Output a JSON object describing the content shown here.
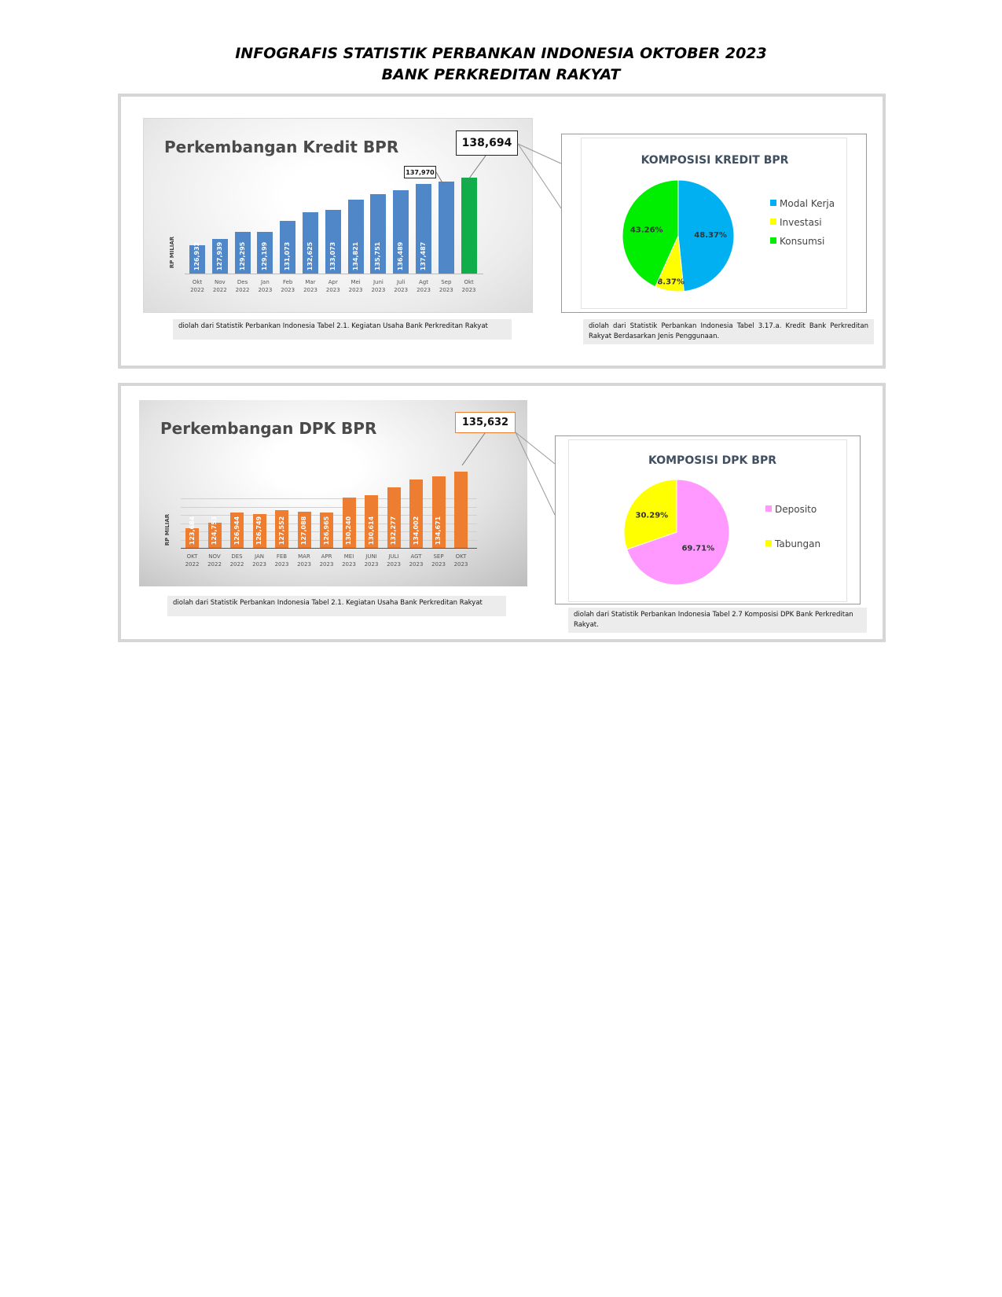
{
  "header": {
    "title_line1": "INFOGRAFIS STATISTIK PERBANKAN INDONESIA OKTOBER 2023",
    "title_line2": "BANK PERKREDITAN RAKYAT"
  },
  "colors": {
    "kredit_bar": "#4f87c8",
    "kredit_bar_highlight": "#0fae4b",
    "dpk_bar": "#ed7d31",
    "modal_kerja": "#00b0f0",
    "investasi": "#ffff00",
    "konsumsi": "#00ee00",
    "deposito": "#ff99ff",
    "tabungan": "#ffff00"
  },
  "kredit_section": {
    "source_note": "diolah dari Statistik Perbankan Indonesia Tabel 2.1. Kegiatan Usaha Bank Perkreditan Rakyat",
    "pie_source_note": "diolah dari Statistik Perbankan Indonesia Tabel 3.17.a. Kredit Bank Perkreditan Rakyat Berdasarkan Jenis Penggunaan."
  },
  "dpk_section": {
    "source_note": "diolah dari Statistik Perbankan Indonesia Tabel 2.1. Kegiatan Usaha Bank Perkreditan Rakyat",
    "pie_source_note": "diolah dari Statistik Perbankan Indonesia Tabel 2.7 Komposisi DPK Bank Perkreditan Rakyat."
  },
  "chart_data": [
    {
      "type": "bar",
      "title": "Perkembangan Kredit BPR",
      "ylabel": "RP MILIAR",
      "categories": [
        [
          "Okt",
          "2022"
        ],
        [
          "Nov",
          "2022"
        ],
        [
          "Des",
          "2022"
        ],
        [
          "Jan",
          "2023"
        ],
        [
          "Feb",
          "2023"
        ],
        [
          "Mar",
          "2023"
        ],
        [
          "Apr",
          "2023"
        ],
        [
          "Mei",
          "2023"
        ],
        [
          "Juni",
          "2023"
        ],
        [
          "Juli",
          "2023"
        ],
        [
          "Agt",
          "2023"
        ],
        [
          "Sep",
          "2023"
        ],
        [
          "Okt",
          "2023"
        ]
      ],
      "values": [
        126932,
        127939,
        129295,
        129199,
        131073,
        132625,
        133073,
        134821,
        135751,
        136489,
        137487,
        137970,
        138694
      ],
      "value_labels": [
        "126,932",
        "127,939",
        "129,295",
        "129,199",
        "131,073",
        "132,625",
        "133,073",
        "134,821",
        "135,751",
        "136,489",
        "137,487",
        "",
        ""
      ],
      "callouts": [
        {
          "index": 12,
          "label": "138,694"
        },
        {
          "index": 11,
          "label": "137,970"
        }
      ],
      "highlight_index": 12,
      "ylim": [
        122000,
        140000
      ],
      "grid": false
    },
    {
      "type": "pie",
      "title": "KOMPOSISI KREDIT BPR",
      "slices": [
        {
          "name": "Modal Kerja",
          "value": 48.37,
          "label": "48.37%"
        },
        {
          "name": "Investasi",
          "value": 8.37,
          "label": "8.37%"
        },
        {
          "name": "Konsumsi",
          "value": 43.26,
          "label": "43.26%"
        }
      ],
      "legend": "right"
    },
    {
      "type": "bar",
      "title": "Perkembangan DPK BPR",
      "ylabel": "RP MILIAR",
      "categories": [
        [
          "OKT",
          "2022"
        ],
        [
          "NOV",
          "2022"
        ],
        [
          "DES",
          "2022"
        ],
        [
          "JAN",
          "2023"
        ],
        [
          "FEB",
          "2023"
        ],
        [
          "MAR",
          "2023"
        ],
        [
          "APR",
          "2023"
        ],
        [
          "MEI",
          "2023"
        ],
        [
          "JUNI",
          "2023"
        ],
        [
          "JULI",
          "2023"
        ],
        [
          "AGT",
          "2023"
        ],
        [
          "SEP",
          "2023"
        ],
        [
          "OKT",
          "2023"
        ]
      ],
      "values": [
        123684,
        124753,
        126944,
        126749,
        127552,
        127088,
        126965,
        130240,
        130614,
        132277,
        134002,
        134671,
        135632
      ],
      "value_labels": [
        "123,684",
        "124,753",
        "126,944",
        "126,749",
        "127,552",
        "127,088",
        "126,965",
        "130,240",
        "130,614",
        "132,277",
        "134,002",
        "134,671",
        ""
      ],
      "callouts": [
        {
          "index": 12,
          "label": "135,632"
        }
      ],
      "ylim": [
        119500,
        137500
      ],
      "grid": true
    },
    {
      "type": "pie",
      "title": "KOMPOSISI DPK BPR",
      "slices": [
        {
          "name": "Deposito",
          "value": 69.71,
          "label": "69.71%"
        },
        {
          "name": "Tabungan",
          "value": 30.29,
          "label": "30.29%"
        }
      ],
      "legend": "right"
    }
  ]
}
